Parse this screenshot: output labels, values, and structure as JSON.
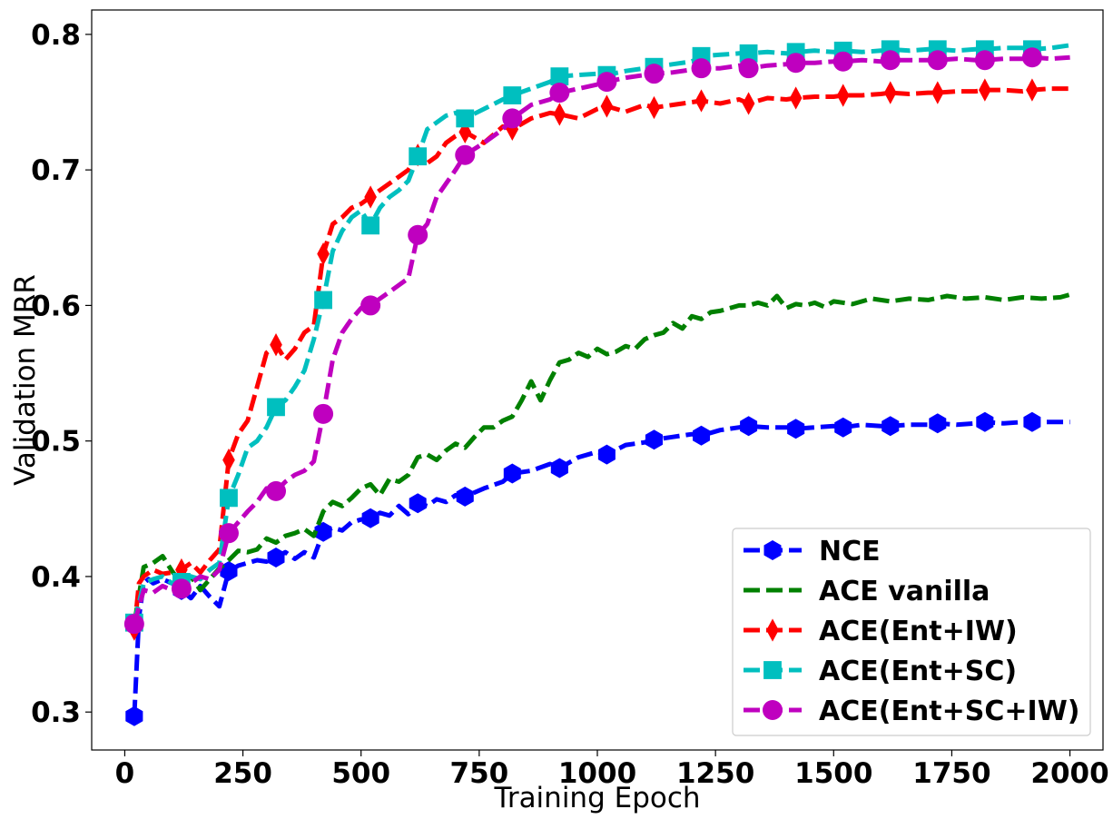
{
  "chart_data": {
    "type": "line",
    "xlabel": "Training Epoch",
    "ylabel": "Validation MRR",
    "xlim": [
      -70,
      2070
    ],
    "ylim": [
      0.272,
      0.818
    ],
    "xticks": [
      0,
      250,
      500,
      750,
      1000,
      1250,
      1500,
      1750,
      2000
    ],
    "yticks": [
      0.3,
      0.4,
      0.5,
      0.6,
      0.7,
      0.8
    ],
    "xtick_labels": [
      "0",
      "250",
      "500",
      "750",
      "1000",
      "1250",
      "1500",
      "1750",
      "2000"
    ],
    "ytick_labels": [
      "0.3",
      "0.4",
      "0.5",
      "0.6",
      "0.7",
      "0.8"
    ],
    "grid": false,
    "legend_position": "lower right",
    "series": [
      {
        "name": "NCE",
        "color": "#0000ff",
        "marker": "hexagon",
        "x": [
          20,
          30,
          40,
          50,
          60,
          80,
          100,
          120,
          140,
          160,
          180,
          200,
          220,
          240,
          260,
          280,
          300,
          320,
          340,
          360,
          380,
          400,
          420,
          440,
          460,
          480,
          500,
          520,
          540,
          560,
          580,
          600,
          620,
          640,
          660,
          680,
          700,
          720,
          760,
          800,
          820,
          860,
          900,
          920,
          960,
          1000,
          1020,
          1060,
          1100,
          1120,
          1160,
          1200,
          1220,
          1260,
          1300,
          1320,
          1360,
          1400,
          1420,
          1460,
          1500,
          1520,
          1560,
          1600,
          1620,
          1660,
          1700,
          1720,
          1760,
          1800,
          1820,
          1860,
          1900,
          1920,
          1960,
          2000
        ],
        "y": [
          0.297,
          0.37,
          0.395,
          0.398,
          0.395,
          0.398,
          0.395,
          0.39,
          0.384,
          0.393,
          0.385,
          0.378,
          0.404,
          0.408,
          0.41,
          0.412,
          0.411,
          0.414,
          0.418,
          0.413,
          0.418,
          0.414,
          0.433,
          0.436,
          0.434,
          0.44,
          0.442,
          0.443,
          0.447,
          0.445,
          0.452,
          0.446,
          0.454,
          0.452,
          0.457,
          0.455,
          0.46,
          0.459,
          0.465,
          0.47,
          0.476,
          0.478,
          0.483,
          0.48,
          0.488,
          0.492,
          0.49,
          0.497,
          0.499,
          0.501,
          0.503,
          0.505,
          0.504,
          0.508,
          0.51,
          0.511,
          0.51,
          0.51,
          0.509,
          0.51,
          0.511,
          0.51,
          0.512,
          0.511,
          0.511,
          0.512,
          0.512,
          0.513,
          0.512,
          0.513,
          0.514,
          0.513,
          0.514,
          0.514,
          0.514,
          0.514
        ],
        "marker_x": [
          20,
          120,
          220,
          320,
          420,
          520,
          620,
          720,
          820,
          920,
          1020,
          1120,
          1220,
          1320,
          1420,
          1520,
          1620,
          1720,
          1820,
          1920
        ]
      },
      {
        "name": "ACE vanilla",
        "color": "#008000",
        "marker": "none",
        "x": [
          20,
          40,
          60,
          80,
          100,
          120,
          140,
          160,
          180,
          200,
          220,
          240,
          260,
          280,
          300,
          320,
          340,
          360,
          380,
          400,
          420,
          440,
          460,
          480,
          500,
          520,
          540,
          560,
          580,
          600,
          620,
          640,
          660,
          680,
          700,
          720,
          740,
          760,
          780,
          800,
          820,
          840,
          860,
          880,
          900,
          920,
          940,
          960,
          980,
          1000,
          1020,
          1040,
          1060,
          1080,
          1100,
          1120,
          1140,
          1160,
          1180,
          1200,
          1220,
          1240,
          1260,
          1280,
          1300,
          1320,
          1340,
          1360,
          1380,
          1400,
          1420,
          1440,
          1460,
          1480,
          1500,
          1540,
          1580,
          1620,
          1660,
          1700,
          1740,
          1780,
          1820,
          1860,
          1900,
          1940,
          1980,
          2000
        ],
        "y": [
          0.365,
          0.407,
          0.41,
          0.415,
          0.404,
          0.395,
          0.4,
          0.39,
          0.398,
          0.406,
          0.412,
          0.419,
          0.418,
          0.42,
          0.428,
          0.425,
          0.43,
          0.432,
          0.435,
          0.43,
          0.448,
          0.455,
          0.452,
          0.458,
          0.465,
          0.468,
          0.46,
          0.472,
          0.47,
          0.475,
          0.488,
          0.49,
          0.486,
          0.493,
          0.498,
          0.495,
          0.503,
          0.51,
          0.51,
          0.515,
          0.518,
          0.53,
          0.544,
          0.53,
          0.545,
          0.558,
          0.56,
          0.565,
          0.562,
          0.568,
          0.564,
          0.566,
          0.57,
          0.568,
          0.575,
          0.578,
          0.58,
          0.587,
          0.583,
          0.592,
          0.59,
          0.595,
          0.596,
          0.598,
          0.6,
          0.6,
          0.602,
          0.6,
          0.607,
          0.598,
          0.601,
          0.6,
          0.602,
          0.599,
          0.603,
          0.601,
          0.605,
          0.603,
          0.605,
          0.604,
          0.607,
          0.605,
          0.606,
          0.604,
          0.606,
          0.605,
          0.606,
          0.608
        ]
      },
      {
        "name": "ACE(Ent+IW)",
        "color": "#ff0000",
        "marker": "diamond",
        "x": [
          20,
          30,
          40,
          60,
          80,
          100,
          120,
          140,
          160,
          180,
          200,
          220,
          240,
          260,
          280,
          300,
          320,
          340,
          360,
          380,
          400,
          420,
          440,
          460,
          480,
          500,
          520,
          540,
          560,
          580,
          600,
          620,
          640,
          660,
          680,
          700,
          720,
          760,
          800,
          820,
          860,
          900,
          920,
          960,
          1000,
          1020,
          1060,
          1100,
          1120,
          1160,
          1200,
          1220,
          1260,
          1300,
          1320,
          1360,
          1400,
          1420,
          1460,
          1500,
          1520,
          1560,
          1600,
          1620,
          1660,
          1700,
          1720,
          1760,
          1800,
          1820,
          1860,
          1900,
          1920,
          1960,
          2000
        ],
        "y": [
          0.361,
          0.395,
          0.4,
          0.405,
          0.402,
          0.403,
          0.405,
          0.41,
          0.403,
          0.412,
          0.42,
          0.486,
          0.505,
          0.515,
          0.54,
          0.565,
          0.571,
          0.56,
          0.568,
          0.58,
          0.585,
          0.638,
          0.66,
          0.665,
          0.672,
          0.675,
          0.68,
          0.685,
          0.69,
          0.695,
          0.7,
          0.711,
          0.705,
          0.71,
          0.72,
          0.725,
          0.728,
          0.72,
          0.732,
          0.73,
          0.738,
          0.742,
          0.741,
          0.738,
          0.745,
          0.747,
          0.743,
          0.748,
          0.746,
          0.748,
          0.75,
          0.751,
          0.749,
          0.752,
          0.749,
          0.753,
          0.752,
          0.753,
          0.754,
          0.754,
          0.755,
          0.755,
          0.756,
          0.757,
          0.756,
          0.757,
          0.757,
          0.758,
          0.758,
          0.759,
          0.759,
          0.758,
          0.759,
          0.76,
          0.76
        ],
        "marker_x": [
          20,
          120,
          220,
          320,
          420,
          520,
          620,
          720,
          820,
          920,
          1020,
          1120,
          1220,
          1320,
          1420,
          1520,
          1620,
          1720,
          1820,
          1920
        ]
      },
      {
        "name": "ACE(Ent+SC)",
        "color": "#00bfbf",
        "marker": "square",
        "x": [
          20,
          40,
          60,
          80,
          100,
          120,
          140,
          160,
          180,
          200,
          220,
          240,
          260,
          280,
          300,
          320,
          340,
          360,
          380,
          400,
          420,
          440,
          460,
          480,
          500,
          520,
          540,
          560,
          580,
          600,
          620,
          640,
          660,
          680,
          700,
          720,
          760,
          800,
          820,
          860,
          900,
          920,
          960,
          1000,
          1020,
          1060,
          1100,
          1120,
          1160,
          1200,
          1220,
          1260,
          1300,
          1320,
          1360,
          1400,
          1420,
          1460,
          1500,
          1520,
          1560,
          1600,
          1620,
          1660,
          1700,
          1720,
          1760,
          1800,
          1820,
          1860,
          1900,
          1920,
          1960,
          2000
        ],
        "y": [
          0.366,
          0.395,
          0.398,
          0.4,
          0.395,
          0.396,
          0.4,
          0.398,
          0.405,
          0.41,
          0.458,
          0.475,
          0.495,
          0.5,
          0.51,
          0.525,
          0.53,
          0.54,
          0.552,
          0.575,
          0.604,
          0.64,
          0.655,
          0.665,
          0.67,
          0.659,
          0.672,
          0.68,
          0.685,
          0.692,
          0.71,
          0.73,
          0.735,
          0.74,
          0.742,
          0.738,
          0.745,
          0.752,
          0.755,
          0.76,
          0.765,
          0.769,
          0.77,
          0.771,
          0.77,
          0.773,
          0.775,
          0.776,
          0.778,
          0.78,
          0.784,
          0.785,
          0.786,
          0.786,
          0.787,
          0.786,
          0.787,
          0.788,
          0.787,
          0.788,
          0.787,
          0.788,
          0.789,
          0.788,
          0.789,
          0.789,
          0.788,
          0.789,
          0.789,
          0.79,
          0.79,
          0.789,
          0.79,
          0.792
        ],
        "marker_x": [
          20,
          120,
          220,
          320,
          420,
          520,
          620,
          720,
          820,
          920,
          1020,
          1120,
          1220,
          1320,
          1420,
          1520,
          1620,
          1720,
          1820,
          1920
        ]
      },
      {
        "name": "ACE(Ent+SC+IW)",
        "color": "#bf00bf",
        "marker": "circle",
        "x": [
          20,
          40,
          60,
          80,
          100,
          120,
          140,
          160,
          180,
          200,
          220,
          240,
          260,
          280,
          300,
          320,
          340,
          360,
          380,
          400,
          420,
          440,
          460,
          480,
          500,
          520,
          540,
          560,
          580,
          600,
          620,
          640,
          660,
          680,
          700,
          720,
          760,
          800,
          820,
          860,
          900,
          920,
          960,
          1000,
          1020,
          1060,
          1100,
          1120,
          1160,
          1200,
          1220,
          1260,
          1300,
          1320,
          1360,
          1400,
          1420,
          1460,
          1500,
          1520,
          1560,
          1600,
          1620,
          1660,
          1700,
          1720,
          1760,
          1800,
          1820,
          1860,
          1900,
          1920,
          1960,
          2000
        ],
        "y": [
          0.365,
          0.39,
          0.388,
          0.393,
          0.39,
          0.391,
          0.395,
          0.4,
          0.398,
          0.405,
          0.432,
          0.44,
          0.448,
          0.455,
          0.465,
          0.463,
          0.47,
          0.475,
          0.478,
          0.485,
          0.52,
          0.56,
          0.58,
          0.59,
          0.598,
          0.6,
          0.605,
          0.61,
          0.615,
          0.62,
          0.652,
          0.66,
          0.68,
          0.69,
          0.7,
          0.711,
          0.72,
          0.73,
          0.738,
          0.748,
          0.752,
          0.757,
          0.76,
          0.763,
          0.765,
          0.768,
          0.77,
          0.771,
          0.772,
          0.774,
          0.775,
          0.775,
          0.777,
          0.775,
          0.777,
          0.778,
          0.779,
          0.779,
          0.78,
          0.78,
          0.781,
          0.78,
          0.781,
          0.781,
          0.781,
          0.781,
          0.782,
          0.781,
          0.781,
          0.782,
          0.782,
          0.783,
          0.782,
          0.783
        ],
        "marker_x": [
          20,
          120,
          220,
          320,
          420,
          520,
          620,
          720,
          820,
          920,
          1020,
          1120,
          1220,
          1320,
          1420,
          1520,
          1620,
          1720,
          1820,
          1920
        ]
      }
    ]
  }
}
